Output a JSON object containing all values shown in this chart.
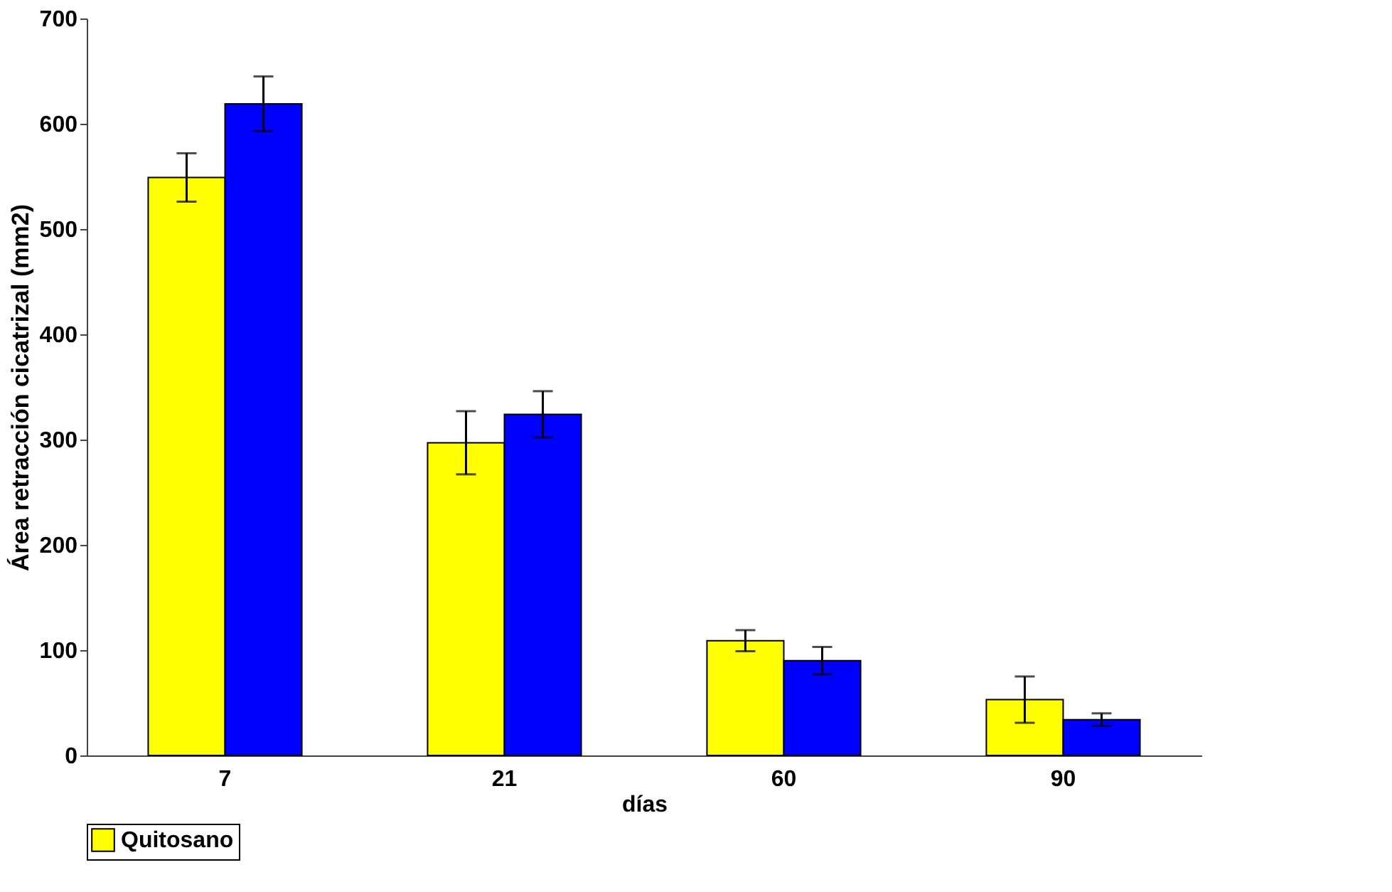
{
  "chart_data": {
    "type": "bar",
    "xlabel": "días",
    "ylabel": "Área retracción cicatrizal (mm2)",
    "categories": [
      "7",
      "21",
      "60",
      "90"
    ],
    "series": [
      {
        "name": "Quitosano",
        "color": "#ffff00",
        "values": [
          549,
          297,
          109,
          53
        ],
        "errors": [
          23,
          30,
          10,
          22
        ]
      },
      {
        "color": "#0000ff",
        "values": [
          619,
          324,
          90,
          34
        ],
        "errors": [
          26,
          22,
          13,
          6
        ]
      }
    ],
    "ylim": [
      0,
      700
    ],
    "yticks": [
      0,
      100,
      200,
      300,
      400,
      500,
      600,
      700
    ],
    "grid": false,
    "legend": "bottom"
  }
}
